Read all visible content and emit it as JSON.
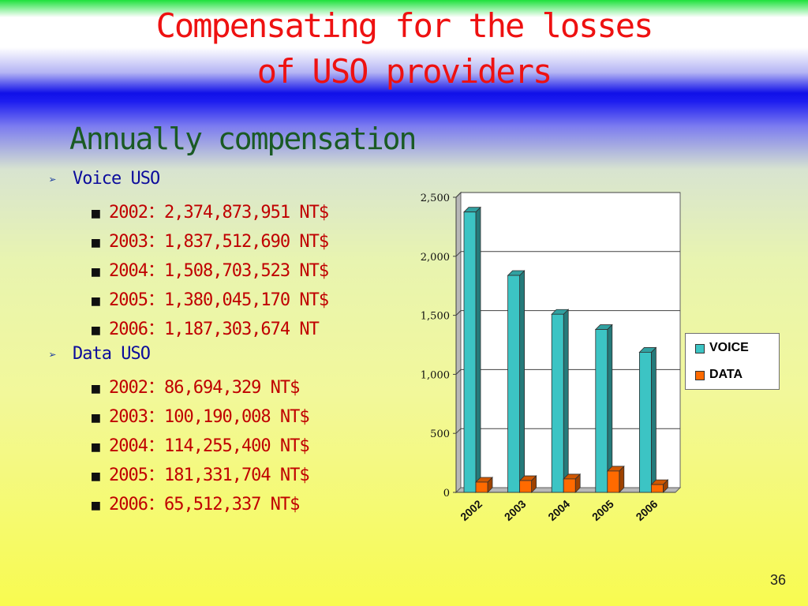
{
  "slide": {
    "title_line1": "Compensating for the losses",
    "title_line2": "of USO providers",
    "subtitle": "Annually compensation",
    "page_number": "36"
  },
  "voice": {
    "label": "Voice USO",
    "items": [
      "2002：2,374,873,951 NT$",
      "2003：1,837,512,690 NT$",
      "2004：1,508,703,523 NT$",
      "2005：1,380,045,170 NT$",
      "2006：1,187,303,674 NT"
    ]
  },
  "data_uso": {
    "label": "Data USO",
    "items": [
      "2002：86,694,329 NT$",
      "2003：100,190,008 NT$",
      "2004：114,255,400 NT$",
      "2005：181,331,704 NT$",
      "2006：65,512,337 NT$"
    ]
  },
  "chart_data": {
    "type": "bar",
    "categories": [
      "2002",
      "2003",
      "2004",
      "2005",
      "2006"
    ],
    "series": [
      {
        "name": "VOICE",
        "values": [
          2375,
          1838,
          1509,
          1380,
          1187
        ],
        "color": "#3cc4c4"
      },
      {
        "name": "DATA",
        "values": [
          87,
          100,
          114,
          181,
          66
        ],
        "color": "#ff6a00"
      }
    ],
    "yticks": [
      "0",
      "500",
      "1,000",
      "1,500",
      "2,000",
      "2,500"
    ],
    "ylim": [
      0,
      2500
    ],
    "grid": true,
    "legend": "right"
  }
}
